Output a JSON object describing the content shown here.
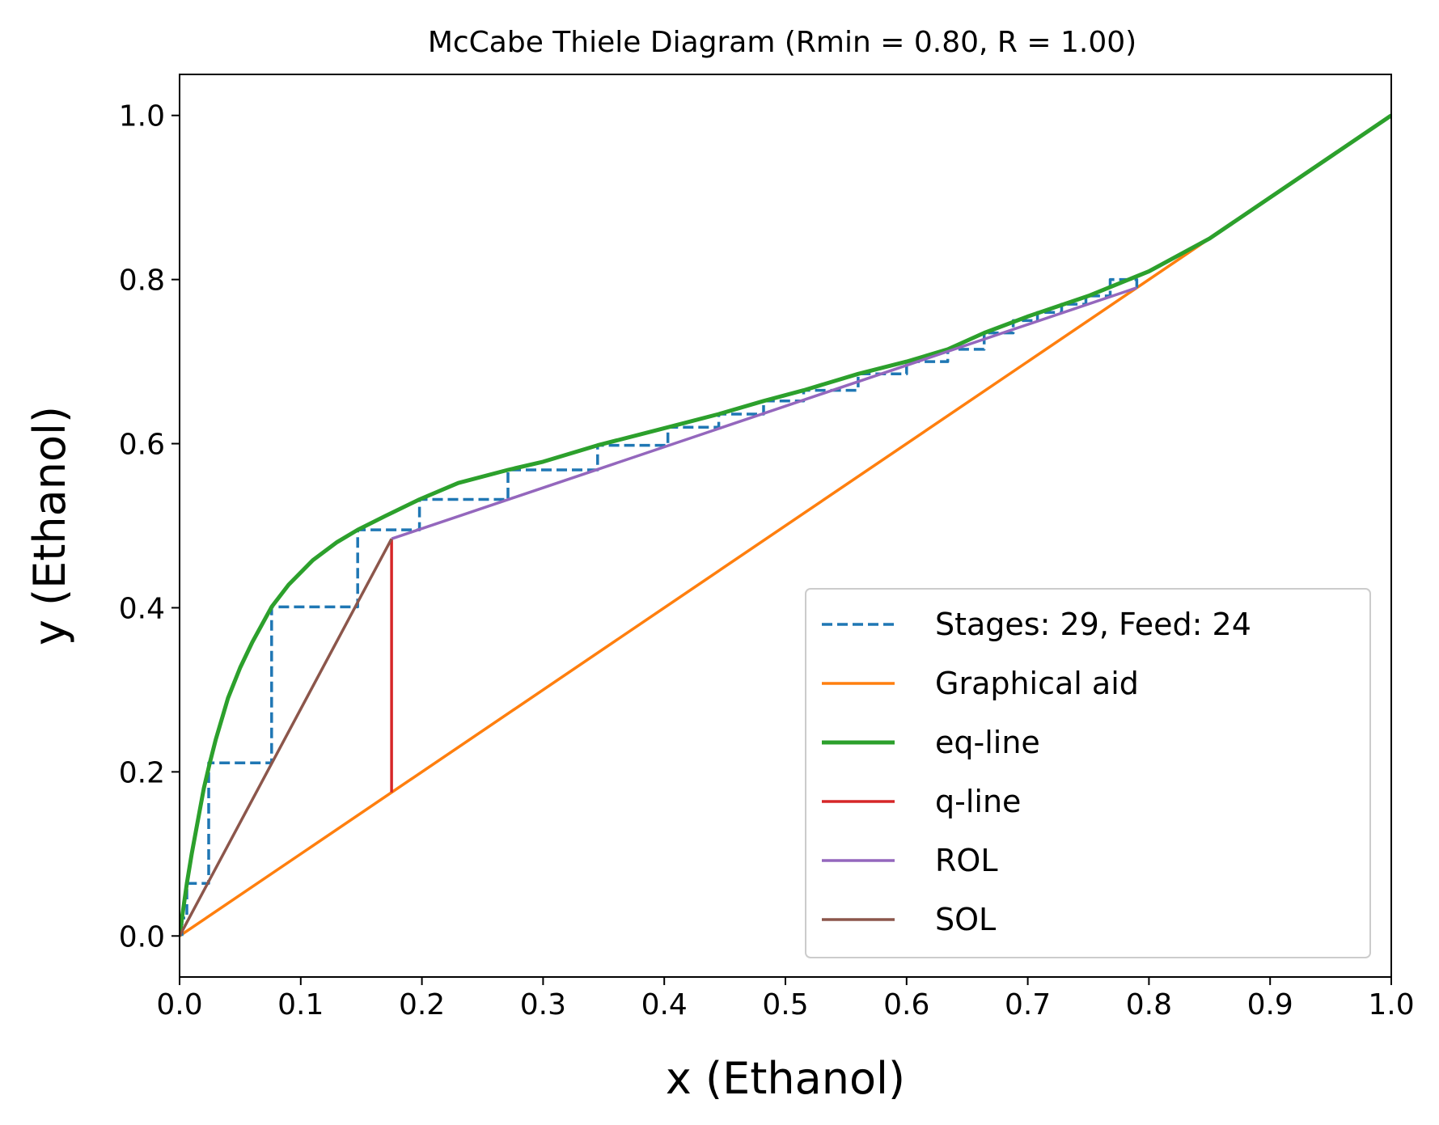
{
  "chart_data": {
    "type": "line",
    "title": "McCabe Thiele Diagram (Rmin = 0.80, R = 1.00)",
    "xlabel": "x (Ethanol)",
    "ylabel": "y (Ethanol)",
    "xlim": [
      0.0,
      1.0
    ],
    "ylim": [
      -0.05,
      1.05
    ],
    "xticks": [
      0.0,
      0.1,
      0.2,
      0.3,
      0.4,
      0.5,
      0.6,
      0.7,
      0.8,
      0.9,
      1.0
    ],
    "xtick_labels": [
      "0.0",
      "0.1",
      "0.2",
      "0.3",
      "0.4",
      "0.5",
      "0.6",
      "0.7",
      "0.8",
      "0.9",
      "1.0"
    ],
    "yticks": [
      0.0,
      0.2,
      0.4,
      0.6,
      0.8,
      1.0
    ],
    "ytick_labels": [
      "0.0",
      "0.2",
      "0.4",
      "0.6",
      "0.8",
      "1.0"
    ],
    "grid": false,
    "legend_position": "lower-right",
    "series": [
      {
        "name": "Stages: 29, Feed: 24",
        "color": "#1f77b4",
        "style": "dashed",
        "x": [
          0.79,
          0.79,
          0.768,
          0.768,
          0.748,
          0.748,
          0.728,
          0.728,
          0.708,
          0.708,
          0.688,
          0.688,
          0.664,
          0.664,
          0.634,
          0.634,
          0.6,
          0.6,
          0.56,
          0.56,
          0.515,
          0.515,
          0.482,
          0.482,
          0.445,
          0.445,
          0.403,
          0.403,
          0.345,
          0.345,
          0.271,
          0.271,
          0.198,
          0.198,
          0.147,
          0.147,
          0.076,
          0.076,
          0.024,
          0.024,
          0.006,
          0.006,
          0.002,
          0.002
        ],
        "y": [
          0.79,
          0.8,
          0.8,
          0.78,
          0.78,
          0.77,
          0.77,
          0.76,
          0.76,
          0.75,
          0.75,
          0.735,
          0.735,
          0.715,
          0.715,
          0.7,
          0.7,
          0.685,
          0.685,
          0.665,
          0.665,
          0.652,
          0.652,
          0.636,
          0.636,
          0.62,
          0.62,
          0.598,
          0.598,
          0.568,
          0.568,
          0.532,
          0.532,
          0.495,
          0.495,
          0.401,
          0.401,
          0.211,
          0.211,
          0.064,
          0.064,
          0.022,
          0.022,
          0.0
        ]
      },
      {
        "name": "Graphical aid",
        "color": "#ff7f0e",
        "style": "solid",
        "x": [
          0.0,
          1.0
        ],
        "y": [
          0.0,
          1.0
        ]
      },
      {
        "name": "eq-line",
        "color": "#2ca02c",
        "style": "solid",
        "x": [
          0.0,
          0.002,
          0.006,
          0.01,
          0.015,
          0.02,
          0.025,
          0.03,
          0.04,
          0.05,
          0.06,
          0.076,
          0.09,
          0.11,
          0.13,
          0.147,
          0.17,
          0.198,
          0.23,
          0.271,
          0.3,
          0.345,
          0.403,
          0.445,
          0.482,
          0.515,
          0.56,
          0.6,
          0.634,
          0.664,
          0.7,
          0.75,
          0.8,
          0.85,
          0.9,
          0.95,
          1.0
        ],
        "y": [
          0.0,
          0.022,
          0.064,
          0.1,
          0.14,
          0.18,
          0.211,
          0.24,
          0.29,
          0.327,
          0.358,
          0.401,
          0.428,
          0.458,
          0.48,
          0.495,
          0.512,
          0.532,
          0.552,
          0.568,
          0.578,
          0.598,
          0.62,
          0.636,
          0.652,
          0.665,
          0.685,
          0.7,
          0.715,
          0.735,
          0.755,
          0.78,
          0.81,
          0.85,
          0.9,
          0.95,
          1.0
        ]
      },
      {
        "name": "q-line",
        "color": "#d62728",
        "style": "solid",
        "x": [
          0.175,
          0.175
        ],
        "y": [
          0.175,
          0.484
        ]
      },
      {
        "name": "ROL",
        "color": "#9467bd",
        "style": "solid",
        "x": [
          0.175,
          0.79
        ],
        "y": [
          0.484,
          0.79
        ]
      },
      {
        "name": "SOL",
        "color": "#8c564b",
        "style": "solid",
        "x": [
          0.0,
          0.175
        ],
        "y": [
          0.0,
          0.484
        ]
      }
    ]
  }
}
